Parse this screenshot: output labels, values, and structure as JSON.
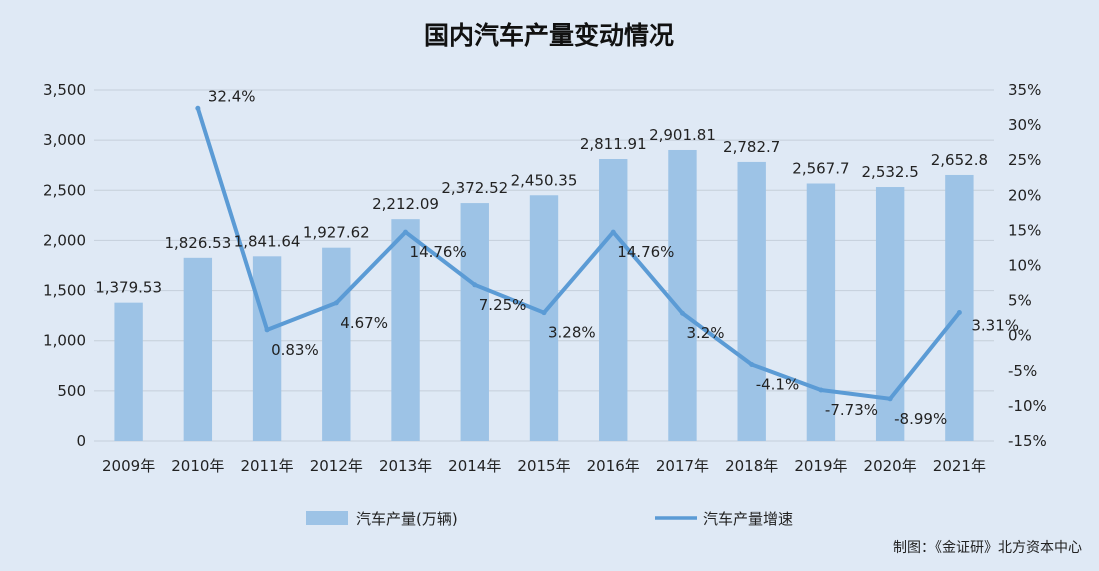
{
  "chart_data": {
    "type": "bar",
    "title": "国内汽车产量变动情况",
    "categories": [
      "2009年",
      "2010年",
      "2011年",
      "2012年",
      "2013年",
      "2014年",
      "2015年",
      "2016年",
      "2017年",
      "2018年",
      "2019年",
      "2020年",
      "2021年"
    ],
    "series": [
      {
        "name": "汽车产量(万辆)",
        "type": "bar",
        "axis": "left",
        "values": [
          1379.53,
          1826.53,
          1841.64,
          1927.62,
          2212.09,
          2372.52,
          2450.35,
          2811.91,
          2901.81,
          2782.7,
          2567.7,
          2532.5,
          2652.8
        ],
        "labels": [
          "1,379.53",
          "1,826.53",
          "1,841.64",
          "1,927.62",
          "2,212.09",
          "2,372.52",
          "2,450.35",
          "2,811.91",
          "2,901.81",
          "2,782.7",
          "2,567.7",
          "2,532.5",
          "2,652.8"
        ]
      },
      {
        "name": "汽车产量增速",
        "type": "line",
        "axis": "right",
        "values": [
          null,
          32.4,
          0.83,
          4.67,
          14.76,
          7.25,
          3.28,
          14.76,
          3.2,
          -4.1,
          -7.73,
          -8.99,
          3.31
        ],
        "labels": [
          "",
          "32.4%",
          "0.83%",
          "4.67%",
          "14.76%",
          "7.25%",
          "3.28%",
          "14.76%",
          "3.2%",
          "-4.1%",
          "-7.73%",
          "-8.99%",
          "3.31%"
        ]
      }
    ],
    "y_left": {
      "min": 0,
      "max": 3500,
      "ticks": [
        "0",
        "500",
        "1,000",
        "1,500",
        "2,000",
        "2,500",
        "3,000",
        "3,500"
      ]
    },
    "y_right": {
      "min": -15,
      "max": 35,
      "ticks": [
        "-15%",
        "-10%",
        "-5%",
        "0%",
        "5%",
        "10%",
        "15%",
        "20%",
        "25%",
        "30%",
        "35%"
      ]
    },
    "grid": true,
    "legend_position": "bottom",
    "colors": {
      "bar": "#9dc3e6",
      "line": "#5b9bd5",
      "background": "#dfe9f5",
      "grid": "#c5cfda"
    }
  },
  "credit": "制图：《金证研》北方资本中心"
}
